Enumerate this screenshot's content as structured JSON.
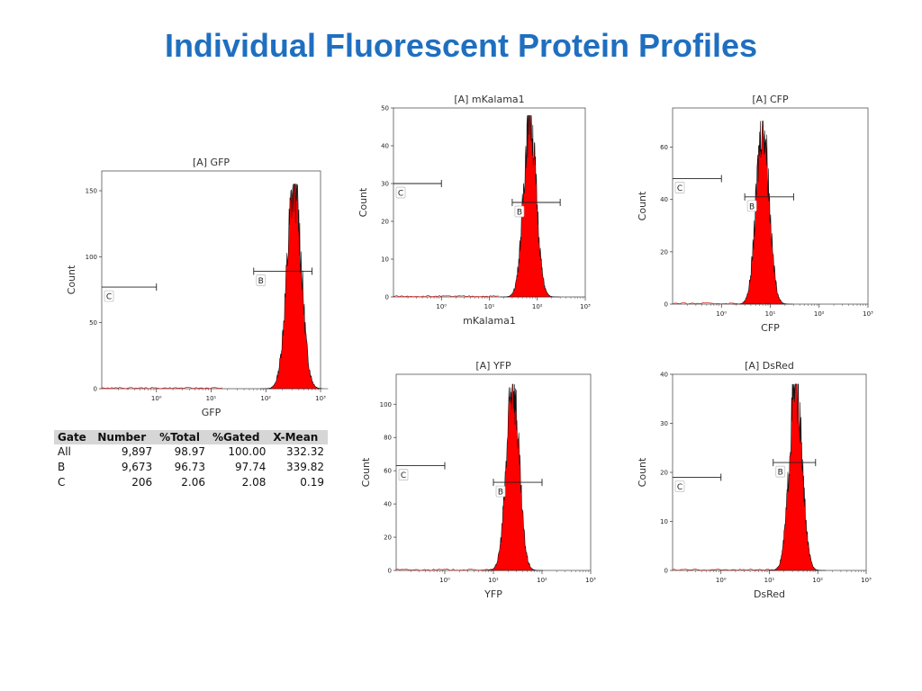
{
  "slide": {
    "title": "Individual Fluorescent Protein Profiles"
  },
  "chart_data": [
    {
      "type": "histogram",
      "title": "[A] GFP",
      "xlabel": "GFP",
      "ylabel": "Count",
      "xscale": "log",
      "xlim": [
        0.1,
        1000
      ],
      "ylim": [
        0,
        165
      ],
      "xticks": [
        "10⁰",
        "10¹",
        "10²",
        "10³"
      ],
      "xtick_values": [
        1,
        10,
        100,
        1000
      ],
      "yticks": [
        0,
        50,
        100,
        150
      ],
      "peak": {
        "x": 330,
        "y": 155
      },
      "gates": [
        {
          "label": "B",
          "range": [
            60,
            700
          ],
          "y": 89
        },
        {
          "label": "C",
          "range": [
            0.1,
            1
          ],
          "y": 77
        }
      ]
    },
    {
      "type": "histogram",
      "title": "[A] mKalama1",
      "xlabel": "mKalama1",
      "ylabel": "Count",
      "xscale": "log",
      "xlim": [
        0.1,
        1000
      ],
      "ylim": [
        0,
        50
      ],
      "xticks": [
        "10⁰",
        "10¹",
        "10²",
        "10³"
      ],
      "xtick_values": [
        1,
        10,
        100,
        1000
      ],
      "yticks": [
        0,
        10,
        20,
        30,
        40,
        50
      ],
      "peak": {
        "x": 70,
        "y": 48
      },
      "gates": [
        {
          "label": "B",
          "range": [
            30,
            300
          ],
          "y": 25
        },
        {
          "label": "C",
          "range": [
            0.1,
            1
          ],
          "y": 30
        }
      ]
    },
    {
      "type": "histogram",
      "title": "[A] CFP",
      "xlabel": "CFP",
      "ylabel": "Count",
      "xscale": "log",
      "xlim": [
        0.1,
        1000
      ],
      "ylim": [
        0,
        75
      ],
      "xticks": [
        "10⁰",
        "10¹",
        "10²",
        "10³"
      ],
      "xtick_values": [
        1,
        10,
        100,
        1000
      ],
      "yticks": [
        0,
        20,
        40,
        60
      ],
      "peak": {
        "x": 7,
        "y": 70
      },
      "gates": [
        {
          "label": "B",
          "range": [
            3,
            30
          ],
          "y": 41
        },
        {
          "label": "C",
          "range": [
            0.1,
            1
          ],
          "y": 48
        }
      ]
    },
    {
      "type": "histogram",
      "title": "[A] YFP",
      "xlabel": "YFP",
      "ylabel": "Count",
      "xscale": "log",
      "xlim": [
        0.1,
        1000
      ],
      "ylim": [
        0,
        118
      ],
      "xticks": [
        "10⁰",
        "10¹",
        "10²",
        "10³"
      ],
      "xtick_values": [
        1,
        10,
        100,
        1000
      ],
      "yticks": [
        0,
        20,
        40,
        60,
        80,
        100
      ],
      "peak": {
        "x": 25,
        "y": 112
      },
      "gates": [
        {
          "label": "B",
          "range": [
            10,
            100
          ],
          "y": 53
        },
        {
          "label": "C",
          "range": [
            0.1,
            1
          ],
          "y": 63
        }
      ]
    },
    {
      "type": "histogram",
      "title": "[A] DsRed",
      "xlabel": "DsRed",
      "ylabel": "Count",
      "xscale": "log",
      "xlim": [
        0.1,
        1000
      ],
      "ylim": [
        0,
        40
      ],
      "xticks": [
        "10⁰",
        "10¹",
        "10²",
        "10³"
      ],
      "xtick_values": [
        1,
        10,
        100,
        1000
      ],
      "yticks": [
        0,
        10,
        20,
        30,
        40
      ],
      "peak": {
        "x": 35,
        "y": 38
      },
      "gates": [
        {
          "label": "B",
          "range": [
            12,
            90
          ],
          "y": 22
        },
        {
          "label": "C",
          "range": [
            0.1,
            1
          ],
          "y": 19
        }
      ]
    }
  ],
  "stats_table": {
    "headers": [
      "Gate",
      "Number",
      "%Total",
      "%Gated",
      "X-Mean"
    ],
    "rows": [
      [
        "All",
        "9,897",
        "98.97",
        "100.00",
        "332.32"
      ],
      [
        "B",
        "9,673",
        "96.73",
        "97.74",
        "339.82"
      ],
      [
        "C",
        "206",
        "2.06",
        "2.08",
        "0.19"
      ]
    ]
  },
  "colors": {
    "title": "#1f6fc0",
    "fill": "#ff0000",
    "edge": "#111111",
    "table_header": "#d6d6d6"
  }
}
